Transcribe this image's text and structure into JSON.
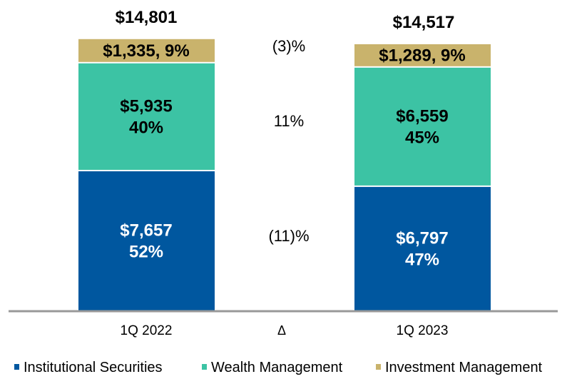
{
  "chart_data": {
    "type": "bar",
    "stacked": true,
    "categories": [
      "1Q 2022",
      "1Q 2023"
    ],
    "totals": [
      "$14,801",
      "$14,517"
    ],
    "total_values": [
      14801,
      14517
    ],
    "delta_label": "Δ",
    "series": [
      {
        "name": "Institutional Securities",
        "color": "#00579f",
        "values": [
          7657,
          6797
        ],
        "labels": [
          [
            "$7,657",
            "52%"
          ],
          [
            "$6,797",
            "47%"
          ]
        ],
        "label_color": "#ffffff",
        "delta": "(11)%"
      },
      {
        "name": "Wealth Management",
        "color": "#3cc3a4",
        "values": [
          5935,
          6559
        ],
        "labels": [
          [
            "$5,935",
            "40%"
          ],
          [
            "$6,559",
            "45%"
          ]
        ],
        "label_color": "#000000",
        "delta": "11%"
      },
      {
        "name": "Investment Management",
        "color": "#c9b36c",
        "values": [
          1335,
          1289
        ],
        "labels": [
          [
            "$1,335, 9%"
          ],
          [
            "$1,289, 9%"
          ]
        ],
        "label_color": "#000000",
        "delta": "(3)%"
      }
    ],
    "axis_color": "#999999",
    "grid": false,
    "legend": "bottom"
  }
}
